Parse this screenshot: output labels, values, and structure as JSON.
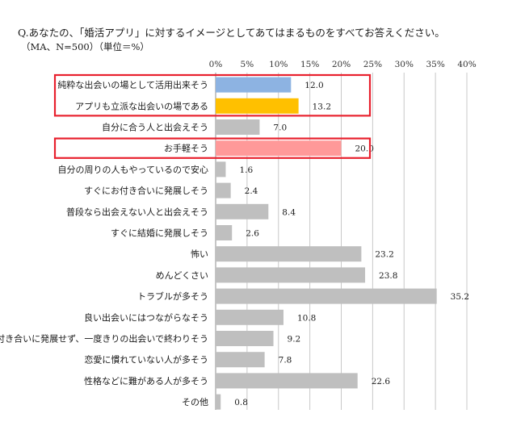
{
  "question": "Q.あなたの、「婚活アプリ」に対するイメージとしてあてはまるものをすべてお答えください。",
  "subtitle": "（MA、N=500）（単位＝%）",
  "colors": {
    "default": "#bfbfbf",
    "blue": "#8db3e2",
    "orange": "#ffc000",
    "pink": "#ff9999",
    "highlight": "#e8212e",
    "grid": "#c8c8c8"
  },
  "chart_data": {
    "type": "bar",
    "orientation": "horizontal",
    "title": "",
    "xlabel": "",
    "ylabel": "",
    "xlim": [
      0,
      40
    ],
    "ticks": [
      "0%",
      "5%",
      "10%",
      "15%",
      "20%",
      "25%",
      "30%",
      "35%",
      "40%"
    ],
    "tick_values": [
      0,
      5,
      10,
      15,
      20,
      25,
      30,
      35,
      40
    ],
    "grid": true,
    "categories": [
      "純粋な出会いの場として活用出来そう",
      "アプリも立派な出会いの場である",
      "自分に合う人と出会えそう",
      "お手軽そう",
      "自分の周りの人もやっているので安心",
      "すぐにお付き合いに発展しそう",
      "普段なら出会えない人と出会えそう",
      "すぐに結婚に発展しそう",
      "怖い",
      "めんどくさい",
      "トラブルが多そう",
      "良い出会いにはつながらなそう",
      "付き合いに発展せず、一度きりの出会いで終わりそう",
      "恋愛に慣れていない人が多そう",
      "性格などに難がある人が多そう",
      "その他"
    ],
    "values": [
      12.0,
      13.2,
      7.0,
      20.0,
      1.6,
      2.4,
      8.4,
      2.6,
      23.2,
      23.8,
      35.2,
      10.8,
      9.2,
      7.8,
      22.6,
      0.8
    ],
    "labels": [
      "12.0",
      "13.2",
      "7.0",
      "20.0",
      "1.6",
      "2.4",
      "8.4",
      "2.6",
      "23.2",
      "23.8",
      "35.2",
      "10.8",
      "9.2",
      "7.8",
      "22.6",
      "0.8"
    ],
    "bar_colors": [
      "blue",
      "orange",
      "default",
      "pink",
      "default",
      "default",
      "default",
      "default",
      "default",
      "default",
      "default",
      "default",
      "default",
      "default",
      "default",
      "default"
    ],
    "highlight_groups": [
      [
        0,
        1
      ],
      [
        3
      ]
    ]
  }
}
